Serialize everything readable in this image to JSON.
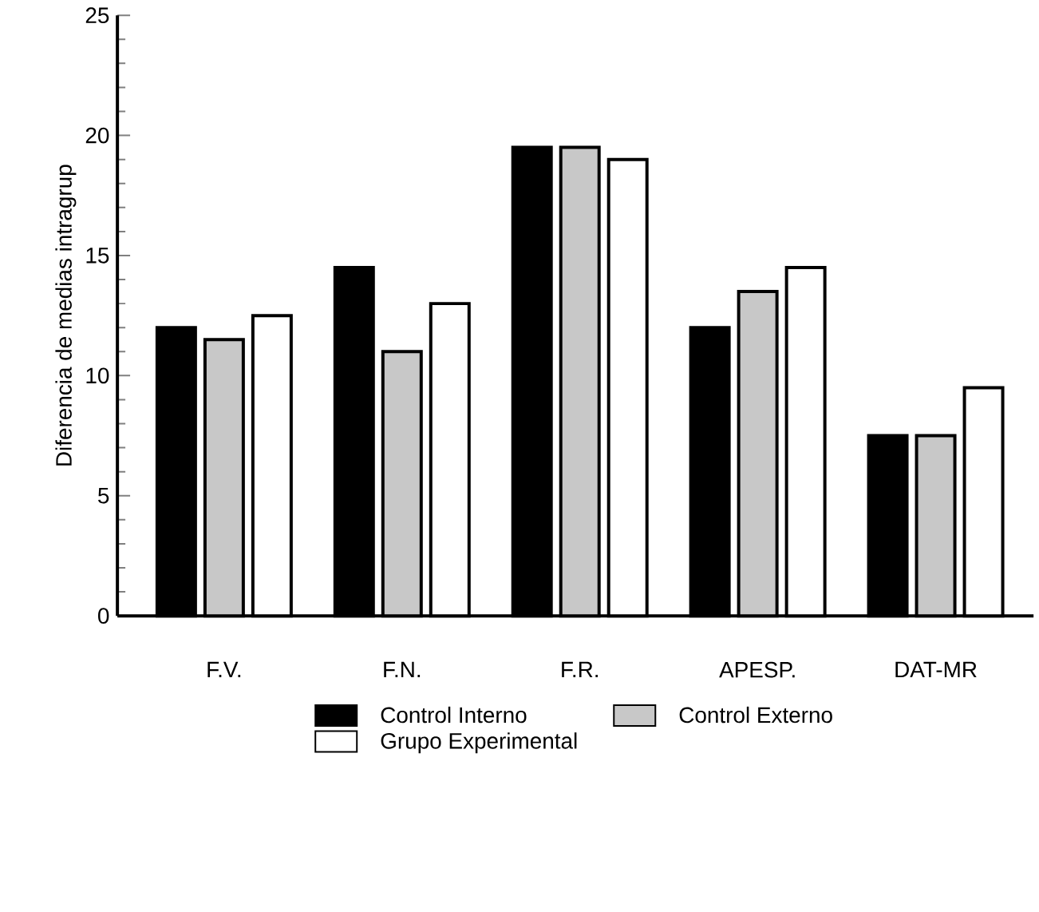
{
  "chart_data": {
    "type": "bar",
    "ylabel": "Diferencia de medias intragrup",
    "categories": [
      "F.V.",
      "F.N.",
      "F.R.",
      "APESP.",
      "DAT-MR"
    ],
    "series": [
      {
        "name": "Control Interno",
        "color": "#000000",
        "values": [
          12,
          14.5,
          19.5,
          12,
          7.5
        ]
      },
      {
        "name": "Control Externo",
        "color": "#c8c8c8",
        "values": [
          11.5,
          11,
          19.5,
          13.5,
          7.5
        ]
      },
      {
        "name": "Grupo Experimental",
        "color": "#ffffff",
        "values": [
          12.5,
          13,
          19,
          14.5,
          9.5
        ]
      }
    ],
    "ylim": [
      0,
      25
    ],
    "yticks": [
      0,
      5,
      10,
      15,
      20,
      25
    ],
    "grid": false,
    "legend": "bottom"
  }
}
